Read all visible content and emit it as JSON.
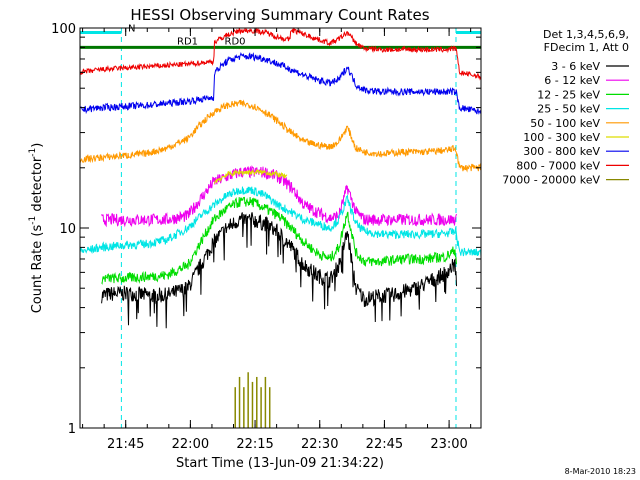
{
  "chart_data": {
    "type": "line",
    "title": "HESSI Observing Summary Count Rates",
    "xlabel": "Start Time (13-Jun-09 21:34:22)",
    "ylabel": "Count Rate (s",
    "ylabel_sup": "-1",
    "ylabel_tail": " detector",
    "ylabel_close": ")",
    "y_scale": "log",
    "ylim": [
      1,
      100
    ],
    "xlim_min": [
      0,
      93
    ],
    "x_ticks": [
      {
        "min": 10.6,
        "label": "21:45"
      },
      {
        "min": 25.6,
        "label": "22:00"
      },
      {
        "min": 40.6,
        "label": "22:15"
      },
      {
        "min": 55.6,
        "label": "22:30"
      },
      {
        "min": 70.6,
        "label": "22:45"
      },
      {
        "min": 85.6,
        "label": "23:00"
      }
    ],
    "y_ticks": [
      {
        "value": 1,
        "label": "1"
      },
      {
        "value": 10,
        "label": "10"
      },
      {
        "value": 100,
        "label": "100"
      }
    ],
    "legend_header": [
      "Det 1,3,4,5,6,9,",
      "FDecim 1, Att 0"
    ],
    "legend_position": "right-outside",
    "flags": [
      {
        "label": "N",
        "color": "#00e5e5",
        "x0": 0,
        "x1": 9.6,
        "level": 95
      },
      {
        "label": "",
        "color": "#00e5e5",
        "x0": 87.2,
        "x1": 93,
        "level": 95
      },
      {
        "label": "RD1",
        "color": "#007700",
        "x0": 0,
        "x1": 31.2,
        "level": 80
      },
      {
        "label": "RD0",
        "color": "#007700",
        "x0": 31.2,
        "x1": 93,
        "level": 80
      }
    ],
    "night_boundaries": [
      0,
      9.6,
      87.2,
      93
    ],
    "series": [
      {
        "name": "3 - 6 keV",
        "color": "#000000",
        "x": [
          5,
          8,
          12,
          16,
          20,
          25,
          28,
          31,
          34,
          37,
          40,
          43,
          46,
          49,
          52,
          55,
          58,
          60,
          62,
          64,
          66,
          68,
          70,
          72,
          75,
          78,
          81,
          84,
          87,
          87.4
        ],
        "y": [
          4.6,
          4.7,
          4.7,
          4.6,
          4.6,
          5,
          6.5,
          8.5,
          10,
          11,
          11,
          10.5,
          9.5,
          8,
          6.5,
          5.8,
          5.5,
          6.5,
          9.5,
          5,
          4.4,
          4.5,
          4.6,
          4.6,
          4.8,
          5,
          5.4,
          5.8,
          6.6,
          5
        ]
      },
      {
        "name": "6 - 12 keV",
        "color": "#ee00ee",
        "x": [
          5,
          10,
          15,
          20,
          25,
          28,
          31,
          34,
          37,
          40,
          43,
          46,
          49,
          52,
          55,
          58,
          60,
          62,
          64,
          66,
          70,
          75,
          80,
          85,
          87,
          87.4
        ],
        "y": [
          11,
          11,
          11,
          11,
          11.5,
          14,
          17,
          18,
          19,
          19,
          19,
          18,
          16,
          13,
          12,
          11.2,
          11.5,
          16,
          12,
          11,
          11,
          11,
          11,
          11,
          11,
          11
        ]
      },
      {
        "name": "12 - 25 keV",
        "color": "#00dd00",
        "x": [
          5,
          10,
          15,
          20,
          25,
          28,
          31,
          34,
          37,
          40,
          43,
          46,
          49,
          52,
          55,
          58,
          60,
          62,
          64,
          66,
          70,
          75,
          80,
          85,
          87,
          87.4
        ],
        "y": [
          5.6,
          5.6,
          5.7,
          5.8,
          6.5,
          8.5,
          11,
          12.5,
          13.5,
          13.5,
          12.5,
          11.5,
          10,
          8.5,
          7.5,
          7,
          8,
          12,
          7.5,
          6.8,
          6.8,
          7,
          7,
          7.2,
          7.8,
          6.5
        ]
      },
      {
        "name": "25 - 50 keV",
        "color": "#00e5e5",
        "x": [
          0,
          5,
          10,
          15,
          20,
          25,
          28,
          31,
          34,
          37,
          40,
          43,
          46,
          49,
          52,
          55,
          58,
          60,
          62,
          64,
          66,
          70,
          75,
          80,
          85,
          87.2,
          88,
          93
        ],
        "y": [
          7.6,
          8,
          8.2,
          8.3,
          8.7,
          10,
          11.5,
          13,
          14.5,
          15.5,
          15.5,
          14.5,
          13,
          12,
          11,
          10.5,
          10,
          11,
          14,
          10.5,
          9.6,
          9.3,
          9.3,
          9.3,
          9.4,
          9.6,
          7.6,
          7.5
        ]
      },
      {
        "name": "50 - 100 keV",
        "color": "#ff9900",
        "x": [
          0,
          5,
          10,
          15,
          20,
          25,
          28,
          31,
          34,
          37,
          40,
          43,
          46,
          49,
          52,
          55,
          58,
          60,
          62,
          64,
          66,
          70,
          75,
          80,
          85,
          87.2,
          88,
          93
        ],
        "y": [
          22,
          22.5,
          23,
          23.5,
          25,
          28,
          33,
          38,
          41,
          42,
          41,
          38,
          34,
          30,
          27,
          26,
          25.5,
          27,
          32,
          25,
          24,
          23.5,
          24,
          24,
          24.5,
          25,
          20,
          20
        ]
      },
      {
        "name": "100 - 300 keV",
        "color": "#dddd00",
        "x": [
          31.2,
          34,
          37,
          40,
          43,
          46,
          48
        ],
        "y": [
          17,
          18.5,
          19,
          19,
          19,
          18.5,
          18
        ]
      },
      {
        "name": "300 - 800 keV",
        "color": "#0000ee",
        "x": [
          0,
          5,
          10,
          15,
          20,
          25,
          28,
          31,
          31.2,
          34,
          37,
          40,
          43,
          46,
          49,
          52,
          55,
          58,
          60,
          62,
          64,
          66,
          70,
          75,
          80,
          85,
          87.2,
          88,
          93
        ],
        "y": [
          39,
          40,
          40.5,
          41,
          42,
          43,
          44,
          45,
          60,
          68,
          72,
          72,
          70,
          66,
          62,
          58,
          55,
          53,
          55,
          64,
          52,
          49,
          48,
          48,
          48,
          48,
          48,
          40,
          38
        ]
      },
      {
        "name": "800 - 7000 keV",
        "color": "#ee0000",
        "x": [
          0,
          5,
          10,
          15,
          20,
          25,
          28,
          31,
          31.2,
          34,
          37,
          40,
          43,
          46,
          48.6,
          49,
          52,
          55,
          58,
          60,
          62,
          64,
          66,
          70,
          75,
          80,
          85,
          87.2,
          88,
          93
        ],
        "y": [
          60,
          62,
          63,
          64,
          65,
          66,
          67,
          68,
          85,
          92,
          97,
          97,
          95,
          90,
          87,
          98,
          93,
          88,
          84,
          88,
          95,
          84,
          79,
          78,
          78,
          78,
          78,
          79,
          60,
          57
        ]
      },
      {
        "name": "7000 - 20000 keV",
        "color": "#888800",
        "x": [
          36,
          37,
          38,
          39,
          40,
          41,
          42,
          43,
          44
        ],
        "y": [
          1.6,
          1.8,
          1.6,
          1.9,
          1.7,
          1.8,
          1.6,
          1.8,
          1.6
        ]
      }
    ]
  },
  "footer": {
    "date": "8-Mar-2010 18:23"
  }
}
